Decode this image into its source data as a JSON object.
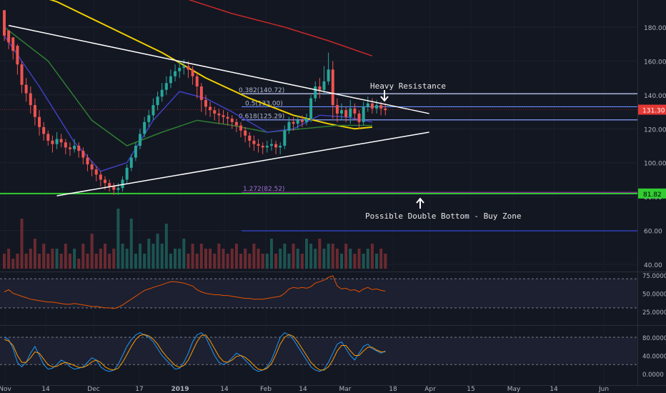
{
  "chart_data": {
    "type": "candlestick",
    "x_axis_labels": [
      "Nov",
      "14",
      "Dec",
      "17",
      "2019",
      "14",
      "Feb",
      "14",
      "Mar",
      "18",
      "Apr",
      "15",
      "May",
      "14",
      "Jun"
    ],
    "price_axis": {
      "ticks": [
        "40.00",
        "60.00",
        "80.00",
        "100.00",
        "120.00",
        "140.00",
        "160.00",
        "180.00"
      ],
      "ylim": [
        38,
        192
      ],
      "current_price": "131.30",
      "support_price": "81.82"
    },
    "indicator1_axis": {
      "ticks": [
        "75.0000",
        "50.0000",
        "25.0000"
      ],
      "ylim": [
        0,
        80
      ]
    },
    "indicator2_axis": {
      "ticks": [
        "80.0000",
        "40.0000",
        "0.0000"
      ],
      "ylim": [
        -5,
        105
      ]
    },
    "candles": [
      [
        190,
        175,
        186,
        172
      ],
      [
        178,
        171,
        176,
        167
      ],
      [
        174,
        166,
        169,
        161
      ],
      [
        169,
        158,
        170,
        152
      ],
      [
        158,
        146,
        160,
        141
      ],
      [
        146,
        141,
        150,
        136
      ],
      [
        141,
        134,
        145,
        129
      ],
      [
        134,
        127,
        138,
        122
      ],
      [
        127,
        121,
        131,
        116
      ],
      [
        121,
        117,
        124,
        113
      ],
      [
        117,
        113,
        119,
        110
      ],
      [
        113,
        111,
        116,
        106
      ],
      [
        111,
        114,
        118,
        108
      ],
      [
        114,
        112,
        117,
        109
      ],
      [
        112,
        109,
        114,
        105
      ],
      [
        109,
        108,
        112,
        104
      ],
      [
        108,
        110,
        114,
        106
      ],
      [
        110,
        107,
        112,
        103
      ],
      [
        107,
        103,
        109,
        99
      ],
      [
        103,
        99,
        105,
        95
      ],
      [
        99,
        96,
        101,
        92
      ],
      [
        96,
        93,
        98,
        89
      ],
      [
        93,
        90,
        95,
        86
      ],
      [
        90,
        88,
        92,
        84
      ],
      [
        88,
        86,
        90,
        83
      ],
      [
        86,
        84,
        88,
        81
      ],
      [
        84,
        85,
        88,
        81
      ],
      [
        85,
        90,
        92,
        83
      ],
      [
        90,
        97,
        99,
        88
      ],
      [
        97,
        103,
        105,
        95
      ],
      [
        103,
        110,
        112,
        101
      ],
      [
        110,
        117,
        120,
        108
      ],
      [
        117,
        124,
        127,
        115
      ],
      [
        124,
        128,
        131,
        121
      ],
      [
        128,
        134,
        138,
        125
      ],
      [
        134,
        139,
        142,
        131
      ],
      [
        139,
        143,
        147,
        136
      ],
      [
        143,
        147,
        151,
        140
      ],
      [
        147,
        151,
        155,
        144
      ],
      [
        151,
        154,
        158,
        148
      ],
      [
        154,
        156,
        160,
        150
      ],
      [
        156,
        157,
        161,
        152
      ],
      [
        157,
        155,
        160,
        150
      ],
      [
        155,
        151,
        157,
        146
      ],
      [
        151,
        145,
        153,
        138
      ],
      [
        145,
        137,
        147,
        130
      ],
      [
        137,
        133,
        140,
        128
      ],
      [
        133,
        131,
        136,
        127
      ],
      [
        131,
        129,
        133,
        125
      ],
      [
        129,
        128,
        132,
        123
      ],
      [
        128,
        127,
        131,
        123
      ],
      [
        127,
        126,
        130,
        122
      ],
      [
        126,
        124,
        128,
        120
      ],
      [
        124,
        122,
        126,
        118
      ],
      [
        122,
        119,
        124,
        115
      ],
      [
        119,
        116,
        121,
        112
      ],
      [
        116,
        113,
        118,
        109
      ],
      [
        113,
        111,
        116,
        107
      ],
      [
        111,
        110,
        114,
        106
      ],
      [
        110,
        109,
        112,
        105
      ],
      [
        109,
        110,
        113,
        106
      ],
      [
        110,
        111,
        114,
        107
      ],
      [
        111,
        109,
        113,
        105
      ],
      [
        109,
        110,
        112,
        105
      ],
      [
        110,
        119,
        122,
        108
      ],
      [
        119,
        124,
        127,
        117
      ],
      [
        124,
        123,
        127,
        119
      ],
      [
        123,
        125,
        128,
        120
      ],
      [
        125,
        124,
        128,
        121
      ],
      [
        124,
        126,
        129,
        122
      ],
      [
        126,
        138,
        140,
        124
      ],
      [
        138,
        145,
        148,
        136
      ],
      [
        145,
        143,
        150,
        138
      ],
      [
        143,
        148,
        157,
        140
      ],
      [
        148,
        155,
        165,
        146
      ],
      [
        155,
        134,
        160,
        126
      ],
      [
        134,
        129,
        138,
        124
      ],
      [
        129,
        131,
        135,
        125
      ],
      [
        131,
        127,
        133,
        124
      ],
      [
        127,
        132,
        137,
        123
      ],
      [
        132,
        129,
        135,
        125
      ],
      [
        129,
        124,
        131,
        120
      ],
      [
        124,
        133,
        136,
        122
      ],
      [
        133,
        135,
        139,
        130
      ],
      [
        135,
        132,
        138,
        129
      ],
      [
        132,
        134,
        137,
        129
      ],
      [
        134,
        132,
        136,
        128
      ],
      [
        132,
        131,
        135,
        128
      ]
    ],
    "volume": [
      3,
      4,
      2,
      3,
      10,
      3,
      4,
      6,
      3,
      5,
      3,
      4,
      4,
      3,
      5,
      3,
      4,
      2,
      5,
      3,
      7,
      3,
      4,
      5,
      3,
      4,
      12,
      5,
      4,
      10,
      3,
      5,
      3,
      6,
      5,
      7,
      5,
      9,
      3,
      4,
      4,
      6,
      3,
      5,
      3,
      5,
      4,
      4,
      3,
      5,
      4,
      3,
      4,
      5,
      3,
      4,
      3,
      5,
      4,
      3,
      3,
      6,
      3,
      4,
      5,
      3,
      5,
      4,
      3,
      6,
      5,
      4,
      6,
      4,
      5,
      5,
      4,
      3,
      5,
      4,
      3,
      4,
      3,
      4,
      5,
      3,
      4,
      3
    ],
    "rsi": [
      52,
      55,
      50,
      48,
      46,
      44,
      42,
      41,
      40,
      39,
      38,
      38,
      37,
      36,
      35,
      35,
      36,
      35,
      34,
      33,
      32,
      32,
      31,
      30,
      30,
      29,
      31,
      34,
      38,
      42,
      46,
      50,
      54,
      56,
      58,
      60,
      62,
      64,
      66,
      66,
      65,
      64,
      62,
      60,
      55,
      52,
      50,
      49,
      48,
      48,
      47,
      47,
      46,
      45,
      44,
      43,
      43,
      42,
      42,
      42,
      43,
      44,
      45,
      46,
      50,
      56,
      58,
      57,
      58,
      57,
      59,
      64,
      66,
      68,
      72,
      74,
      60,
      56,
      57,
      54,
      55,
      52,
      56,
      58,
      55,
      56,
      54,
      53
    ],
    "stoch_k": [
      80,
      75,
      55,
      25,
      15,
      25,
      45,
      60,
      40,
      20,
      10,
      12,
      20,
      30,
      25,
      15,
      10,
      12,
      15,
      25,
      35,
      30,
      15,
      8,
      5,
      8,
      20,
      40,
      60,
      75,
      85,
      90,
      85,
      80,
      70,
      55,
      40,
      30,
      20,
      10,
      12,
      25,
      45,
      70,
      85,
      90,
      80,
      60,
      40,
      25,
      20,
      25,
      35,
      45,
      40,
      30,
      20,
      10,
      5,
      8,
      15,
      30,
      55,
      80,
      90,
      85,
      75,
      60,
      45,
      30,
      15,
      8,
      5,
      10,
      25,
      45,
      65,
      70,
      55,
      40,
      30,
      45,
      60,
      65,
      55,
      50,
      45,
      50
    ],
    "stoch_d": [
      75,
      72,
      62,
      40,
      25,
      25,
      35,
      48,
      45,
      32,
      20,
      15,
      16,
      22,
      25,
      22,
      18,
      14,
      14,
      18,
      26,
      30,
      25,
      15,
      10,
      8,
      12,
      25,
      42,
      60,
      75,
      84,
      86,
      83,
      76,
      65,
      50,
      38,
      28,
      18,
      14,
      18,
      30,
      50,
      70,
      84,
      85,
      72,
      55,
      38,
      27,
      25,
      30,
      38,
      40,
      36,
      28,
      18,
      10,
      8,
      12,
      22,
      42,
      65,
      80,
      86,
      82,
      70,
      55,
      40,
      25,
      15,
      8,
      8,
      15,
      30,
      50,
      62,
      62,
      50,
      40,
      40,
      50,
      58,
      58,
      52,
      48,
      48
    ],
    "ma_yellow": [
      [
        0,
        205
      ],
      [
        12,
        195
      ],
      [
        24,
        180
      ],
      [
        36,
        165
      ],
      [
        46,
        150
      ],
      [
        56,
        138
      ],
      [
        66,
        128
      ],
      [
        74,
        123
      ],
      [
        80,
        120
      ],
      [
        84,
        121
      ]
    ],
    "ma_red": [
      [
        28,
        205
      ],
      [
        40,
        198
      ],
      [
        52,
        188
      ],
      [
        64,
        180
      ],
      [
        74,
        172
      ],
      [
        84,
        163
      ]
    ],
    "ma_blue": [
      [
        0,
        175
      ],
      [
        8,
        145
      ],
      [
        16,
        112
      ],
      [
        22,
        95
      ],
      [
        28,
        100
      ],
      [
        34,
        125
      ],
      [
        40,
        142
      ],
      [
        46,
        138
      ],
      [
        52,
        130
      ],
      [
        60,
        118
      ],
      [
        66,
        120
      ],
      [
        72,
        128
      ],
      [
        78,
        127
      ],
      [
        84,
        124
      ]
    ],
    "ma_green": [
      [
        0,
        180
      ],
      [
        10,
        160
      ],
      [
        20,
        125
      ],
      [
        28,
        110
      ],
      [
        36,
        118
      ],
      [
        44,
        125
      ],
      [
        52,
        122
      ],
      [
        60,
        118
      ],
      [
        68,
        120
      ],
      [
        76,
        122
      ],
      [
        84,
        122
      ]
    ],
    "trend_upper": [
      [
        1,
        181
      ],
      [
        97,
        129
      ]
    ],
    "trend_lower": [
      [
        12,
        80.5
      ],
      [
        97,
        118
      ]
    ],
    "fib_levels": [
      {
        "label": "0.382(140.72)",
        "price": 140.72,
        "color": "#c7d2ff"
      },
      {
        "label": "0.5(133.00)",
        "price": 133.0,
        "color": "#6a8dff"
      },
      {
        "label": "0.618(125.29)",
        "price": 125.29,
        "color": "#8aa2ff"
      },
      {
        "label": "1.272(82.52)",
        "price": 82.52,
        "color": "#9c27b0"
      }
    ],
    "annotations": {
      "resistance": "Heavy Resistance",
      "buy_zone": "Possible Double Bottom - Buy Zone"
    },
    "colors": {
      "up": "#26a69a",
      "down": "#ef5350",
      "support": "#32cd32",
      "price_tag": "#e53935",
      "trend": "#ffffff",
      "ma_yellow": "#f0d000",
      "ma_red": "#c62828",
      "ma_blue": "#3f3fc0",
      "ma_green": "#2e7d32",
      "rsi_line": "#e65100",
      "stoch_k": "#2196f3",
      "stoch_d": "#ff9800"
    }
  }
}
